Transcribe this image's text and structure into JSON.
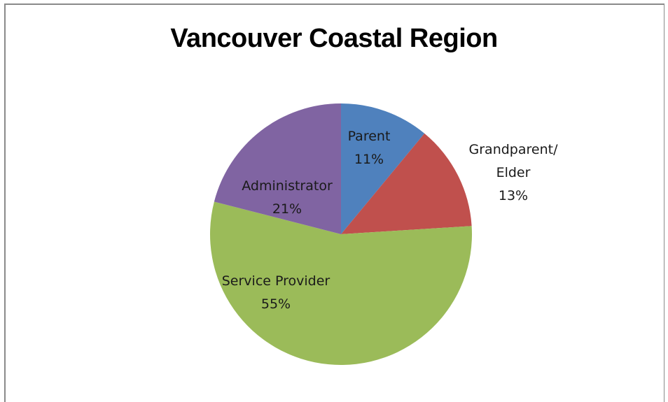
{
  "chart_data": {
    "type": "pie",
    "title": "Vancouver Coastal Region",
    "slices": [
      {
        "label": "Parent",
        "value": 11,
        "value_label": "11%",
        "color": "#4f81bd"
      },
      {
        "label": "Grandparent/ Elder",
        "label_lines": [
          "Grandparent/",
          "Elder"
        ],
        "value": 13,
        "value_label": "13%",
        "color": "#c0504d"
      },
      {
        "label": "Service Provider",
        "value": 55,
        "value_label": "55%",
        "color": "#9bbb59"
      },
      {
        "label": "Administrator",
        "value": 21,
        "value_label": "21%",
        "color": "#8064a2"
      }
    ],
    "legend": "none"
  }
}
